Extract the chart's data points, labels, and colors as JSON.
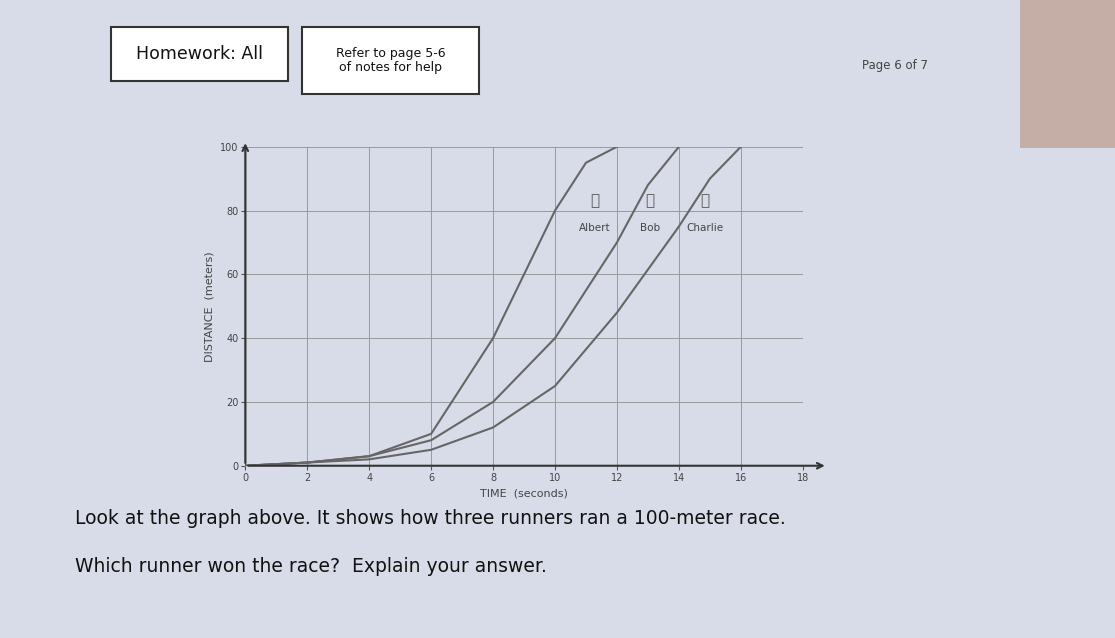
{
  "bg_color": "#c8ccd8",
  "paper_color": "#d8dce8",
  "homework_label": "Homework: All",
  "refer_label": "Refer to page 5-6\nof notes for help",
  "page_label": "Page 6 of 7",
  "xlabel": "TIME  (seconds)",
  "ylabel": "DISTANCE  (meters)",
  "xlim": [
    0,
    18
  ],
  "ylim": [
    0,
    100
  ],
  "xticks": [
    0,
    2,
    4,
    6,
    8,
    10,
    12,
    14,
    16,
    18
  ],
  "yticks": [
    0,
    20,
    40,
    60,
    80,
    100
  ],
  "runner_names": [
    "Albert",
    "Bob",
    "Charlie"
  ],
  "line_color": "#666666",
  "question1": "Look at the graph above. It’shows how three runners ran a 100-meter race.",
  "question2": "Which runner won the race?  Explain your answer.",
  "albert_x": [
    0,
    2,
    4,
    6,
    8,
    9,
    10,
    11,
    12
  ],
  "albert_y": [
    0,
    1,
    3,
    10,
    40,
    60,
    80,
    95,
    100
  ],
  "bob_x": [
    0,
    2,
    4,
    6,
    8,
    10,
    12,
    13,
    14
  ],
  "bob_y": [
    0,
    1,
    3,
    8,
    20,
    40,
    70,
    88,
    100
  ],
  "charlie_x": [
    0,
    2,
    4,
    6,
    8,
    10,
    12,
    14,
    15,
    16
  ],
  "charlie_y": [
    0,
    1,
    2,
    5,
    12,
    25,
    48,
    75,
    90,
    100
  ]
}
